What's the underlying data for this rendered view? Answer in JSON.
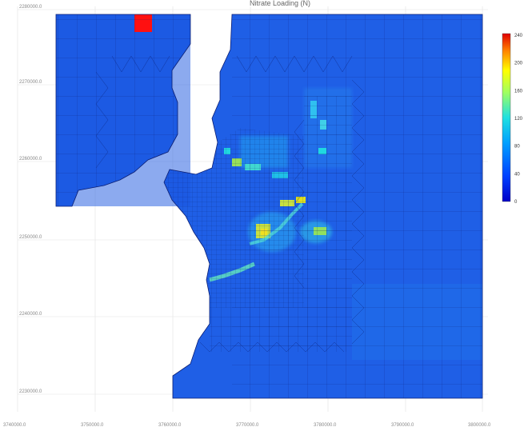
{
  "title": "Nitrate Loading (N)",
  "colorbar": {
    "ticks": [
      "240",
      "200",
      "160",
      "120",
      "80",
      "40",
      "0"
    ],
    "max": 240,
    "min": 0
  },
  "axes": {
    "y_ticks": [
      "2280000.0",
      "2270000.0",
      "2260000.0",
      "2250000.0",
      "2240000.0",
      "2230000.0"
    ],
    "x_ticks": [
      "3740000.0",
      "3750000.0",
      "3760000.0",
      "3770000.0",
      "3780000.0",
      "3790000.0",
      "3800000.0"
    ]
  },
  "colors": {
    "base_blue": "#1f5fe6",
    "deep_blue": "#0f3fd6",
    "land_white": "#ffffff",
    "mesh_line": "#0a1a6a"
  }
}
